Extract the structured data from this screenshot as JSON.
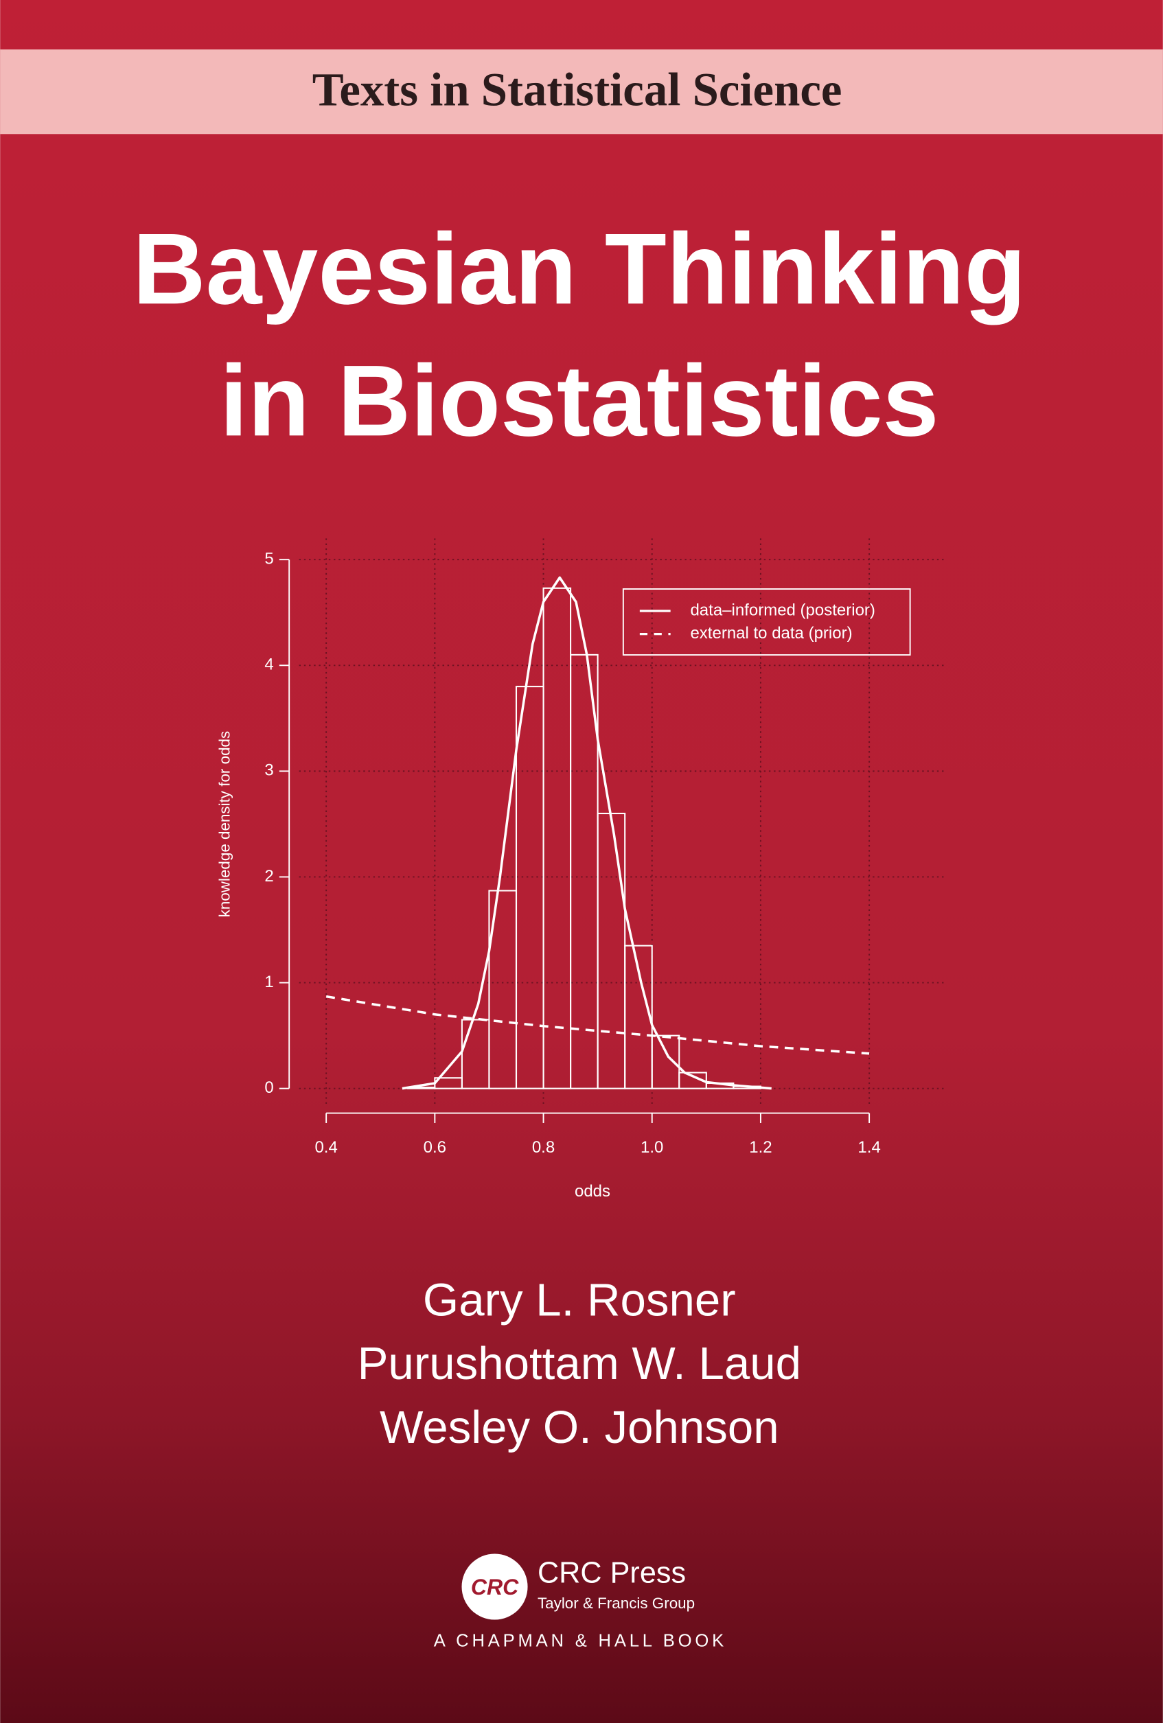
{
  "series_banner": "Texts in Statistical Science",
  "title": [
    "Bayesian Thinking",
    "in Biostatistics"
  ],
  "chart_data": {
    "type": "histogram",
    "bins": [
      0.55,
      0.6,
      0.65,
      0.7,
      0.75,
      0.8,
      0.85,
      0.9,
      0.95,
      1.0,
      1.05,
      1.1,
      1.15,
      1.2
    ],
    "counts": [
      0.01,
      0.1,
      0.65,
      1.87,
      3.8,
      4.73,
      4.1,
      2.6,
      1.35,
      0.5,
      0.15,
      0.05,
      0.02
    ],
    "color": "#ffffff",
    "series": [
      {
        "name": "data–informed (posterior)",
        "color": "#ffffff",
        "style": "solid",
        "x": [
          0.54,
          0.6,
          0.65,
          0.68,
          0.7,
          0.72,
          0.75,
          0.78,
          0.8,
          0.83,
          0.86,
          0.88,
          0.9,
          0.93,
          0.95,
          0.98,
          1.0,
          1.03,
          1.06,
          1.1,
          1.15,
          1.22
        ],
        "values": [
          0,
          0.05,
          0.35,
          0.8,
          1.3,
          2.0,
          3.2,
          4.2,
          4.6,
          4.83,
          4.6,
          4.1,
          3.3,
          2.4,
          1.7,
          1.0,
          0.6,
          0.3,
          0.15,
          0.06,
          0.03,
          0
        ]
      },
      {
        "name": "external to data (prior)",
        "color": "#ffffff",
        "style": "dashed",
        "x": [
          0.4,
          0.6,
          0.8,
          1.0,
          1.2,
          1.4
        ],
        "values": [
          0.87,
          0.7,
          0.59,
          0.5,
          0.4,
          0.33
        ]
      }
    ],
    "xlabel": "odds",
    "ylabel": "knowledge density for odds",
    "xlim": [
      0.35,
      1.54
    ],
    "ylim": [
      -0.15,
      5.2
    ],
    "xticks": [
      0.4,
      0.6,
      0.8,
      {
        "value": 1,
        "label": "1.0"
      },
      1.2,
      1.4
    ],
    "yticks": [
      0,
      1,
      2,
      3,
      4,
      5
    ],
    "grid": true,
    "legend": "top-right"
  },
  "authors": [
    "Gary L. Rosner",
    "Purushottam W. Laud",
    "Wesley O. Johnson"
  ],
  "publisher": {
    "logo": "CRC",
    "name": "CRC Press",
    "group": "Taylor & Francis Group",
    "imprint": "A CHAPMAN & HALL BOOK"
  }
}
